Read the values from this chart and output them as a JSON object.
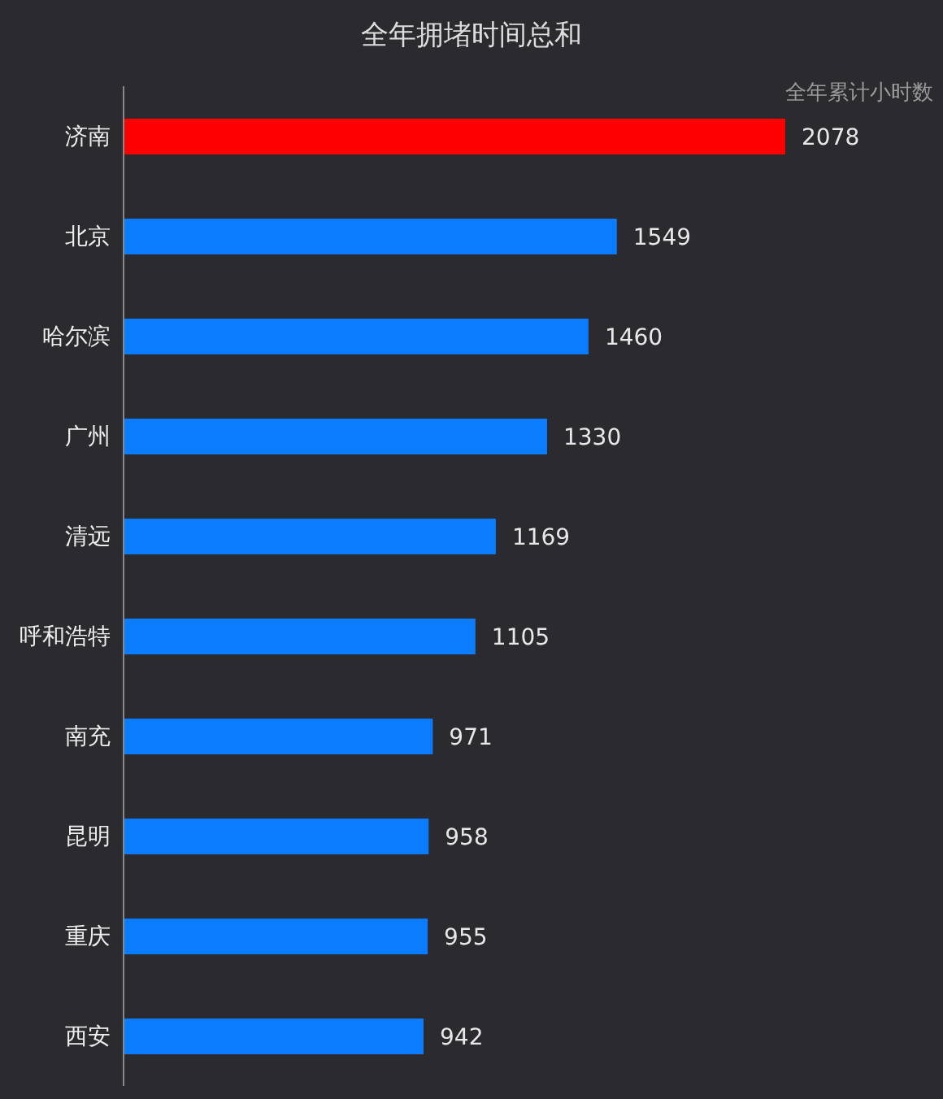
{
  "chart_data": {
    "type": "bar",
    "orientation": "horizontal",
    "title": "全年拥堵时间总和",
    "xlabel": "全年累计小时数",
    "categories": [
      "济南",
      "北京",
      "哈尔滨",
      "广州",
      "清远",
      "呼和浩特",
      "南充",
      "昆明",
      "重庆",
      "西安"
    ],
    "values": [
      2078,
      1549,
      1460,
      1330,
      1169,
      1105,
      971,
      958,
      955,
      942
    ],
    "colors": [
      "#ff0000",
      "#0a7cff",
      "#0a7cff",
      "#0a7cff",
      "#0a7cff",
      "#0a7cff",
      "#0a7cff",
      "#0a7cff",
      "#0a7cff",
      "#0a7cff"
    ],
    "data_labels": true,
    "grid": false,
    "legend": false
  }
}
